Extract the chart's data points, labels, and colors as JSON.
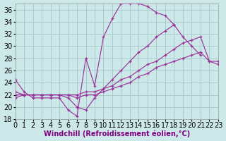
{
  "xlabel": "Windchill (Refroidissement éolien,°C)",
  "background_color": "#cde8e8",
  "grid_color": "#aacccc",
  "line_color": "#993399",
  "xlim": [
    0,
    23
  ],
  "ylim": [
    18,
    37
  ],
  "yticks": [
    18,
    20,
    22,
    24,
    26,
    28,
    30,
    32,
    34,
    36
  ],
  "xticks": [
    0,
    1,
    2,
    3,
    4,
    5,
    6,
    7,
    8,
    9,
    10,
    11,
    12,
    13,
    14,
    15,
    16,
    17,
    18,
    19,
    20,
    21,
    22,
    23
  ],
  "line1_x": [
    0,
    1,
    2,
    3,
    4,
    5,
    6,
    7,
    8,
    9,
    10,
    11,
    12,
    13,
    14,
    15,
    16,
    17,
    18
  ],
  "line1_y": [
    24.5,
    22.5,
    21.5,
    21.5,
    21.5,
    21.5,
    19.5,
    18.5,
    28.0,
    23.5,
    31.5,
    34.5,
    37.0,
    37.0,
    37.0,
    36.5,
    35.5,
    35.0,
    33.5
  ],
  "line2_x": [
    0,
    1,
    2,
    3,
    4,
    5,
    6,
    7,
    8,
    9,
    10,
    11,
    12,
    13,
    14,
    15,
    16,
    17,
    18,
    19,
    20,
    21
  ],
  "line2_y": [
    22.5,
    22.0,
    22.0,
    22.0,
    22.0,
    22.0,
    21.5,
    20.0,
    19.5,
    21.5,
    23.0,
    24.5,
    26.0,
    27.5,
    29.0,
    30.0,
    31.5,
    32.5,
    33.5,
    31.5,
    30.0,
    28.5
  ],
  "line3_x": [
    0,
    1,
    2,
    3,
    4,
    5,
    6,
    7,
    8,
    9,
    10,
    11,
    12,
    13,
    14,
    15,
    16,
    17,
    18,
    19,
    20,
    21,
    22,
    23
  ],
  "line3_y": [
    21.5,
    22.0,
    22.0,
    22.0,
    22.0,
    22.0,
    22.0,
    22.0,
    22.5,
    22.5,
    23.0,
    23.5,
    24.5,
    25.0,
    26.0,
    27.0,
    27.5,
    28.5,
    29.5,
    30.5,
    31.0,
    31.5,
    27.5,
    27.5
  ],
  "line4_x": [
    0,
    1,
    2,
    3,
    4,
    5,
    6,
    7,
    8,
    9,
    10,
    11,
    12,
    13,
    14,
    15,
    16,
    17,
    18,
    19,
    20,
    21,
    22,
    23
  ],
  "line4_y": [
    22.0,
    22.0,
    22.0,
    22.0,
    22.0,
    22.0,
    22.0,
    21.5,
    22.0,
    22.0,
    22.5,
    23.0,
    23.5,
    24.0,
    25.0,
    25.5,
    26.5,
    27.0,
    27.5,
    28.0,
    28.5,
    29.0,
    27.5,
    27.0
  ],
  "font_size": 7
}
